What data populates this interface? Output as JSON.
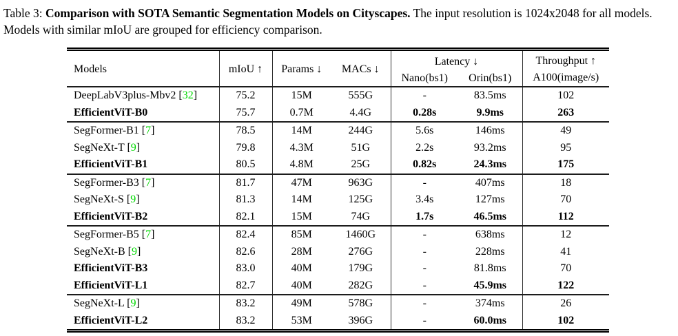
{
  "caption": {
    "prefix": "Table 3: ",
    "title_bold": "Comparison with SOTA Semantic Segmentation Models on Cityscapes.",
    "rest": " The input resolution is 1024x2048 for all models. Models with similar mIoU are grouped for efficiency comparison."
  },
  "table": {
    "citation_color": "#00d800",
    "header": {
      "models": "Models",
      "miou": "mIoU ↑",
      "params": "Params ↓",
      "macs": "MACs ↓",
      "latency": "Latency ↓",
      "latency_sub": [
        "Nano(bs1)",
        "Orin(bs1)"
      ],
      "throughput": "Throughput ↑",
      "throughput_sub": "A100(image/s)"
    },
    "columns": [
      "Models",
      "mIoU",
      "Params",
      "MACs",
      "Latency Nano(bs1)",
      "Latency Orin(bs1)",
      "Throughput A100(image/s)"
    ],
    "groups": [
      {
        "rows": [
          {
            "model": "DeepLabV3plus-Mbv2",
            "cite": "32",
            "name_bold": false,
            "cells": [
              "75.2",
              "15M",
              "555G",
              "-",
              "83.5ms",
              "102"
            ],
            "bold_cells": []
          },
          {
            "model": "EfficientViT-B0",
            "cite": "",
            "name_bold": true,
            "cells": [
              "75.7",
              "0.7M",
              "4.4G",
              "0.28s",
              "9.9ms",
              "263"
            ],
            "bold_cells": [
              3,
              4,
              5
            ]
          }
        ]
      },
      {
        "rows": [
          {
            "model": "SegFormer-B1",
            "cite": "7",
            "name_bold": false,
            "cells": [
              "78.5",
              "14M",
              "244G",
              "5.6s",
              "146ms",
              "49"
            ],
            "bold_cells": []
          },
          {
            "model": "SegNeXt-T",
            "cite": "9",
            "name_bold": false,
            "cells": [
              "79.8",
              "4.3M",
              "51G",
              "2.2s",
              "93.2ms",
              "95"
            ],
            "bold_cells": []
          },
          {
            "model": "EfficientViT-B1",
            "cite": "",
            "name_bold": true,
            "cells": [
              "80.5",
              "4.8M",
              "25G",
              "0.82s",
              "24.3ms",
              "175"
            ],
            "bold_cells": [
              3,
              4,
              5
            ]
          }
        ]
      },
      {
        "rows": [
          {
            "model": "SegFormer-B3",
            "cite": "7",
            "name_bold": false,
            "cells": [
              "81.7",
              "47M",
              "963G",
              "-",
              "407ms",
              "18"
            ],
            "bold_cells": []
          },
          {
            "model": "SegNeXt-S",
            "cite": "9",
            "name_bold": false,
            "cells": [
              "81.3",
              "14M",
              "125G",
              "3.4s",
              "127ms",
              "70"
            ],
            "bold_cells": []
          },
          {
            "model": "EfficientViT-B2",
            "cite": "",
            "name_bold": true,
            "cells": [
              "82.1",
              "15M",
              "74G",
              "1.7s",
              "46.5ms",
              "112"
            ],
            "bold_cells": [
              3,
              4,
              5
            ]
          }
        ]
      },
      {
        "rows": [
          {
            "model": "SegFormer-B5",
            "cite": "7",
            "name_bold": false,
            "cells": [
              "82.4",
              "85M",
              "1460G",
              "-",
              "638ms",
              "12"
            ],
            "bold_cells": []
          },
          {
            "model": "SegNeXt-B",
            "cite": "9",
            "name_bold": false,
            "cells": [
              "82.6",
              "28M",
              "276G",
              "-",
              "228ms",
              "41"
            ],
            "bold_cells": []
          },
          {
            "model": "EfficientViT-B3",
            "cite": "",
            "name_bold": true,
            "cells": [
              "83.0",
              "40M",
              "179G",
              "-",
              "81.8ms",
              "70"
            ],
            "bold_cells": []
          },
          {
            "model": "EfficientViT-L1",
            "cite": "",
            "name_bold": true,
            "cells": [
              "82.7",
              "40M",
              "282G",
              "-",
              "45.9ms",
              "122"
            ],
            "bold_cells": [
              4,
              5
            ]
          }
        ]
      },
      {
        "rows": [
          {
            "model": "SegNeXt-L",
            "cite": "9",
            "name_bold": false,
            "cells": [
              "83.2",
              "49M",
              "578G",
              "-",
              "374ms",
              "26"
            ],
            "bold_cells": []
          },
          {
            "model": "EfficientViT-L2",
            "cite": "",
            "name_bold": true,
            "cells": [
              "83.2",
              "53M",
              "396G",
              "-",
              "60.0ms",
              "102"
            ],
            "bold_cells": [
              4,
              5
            ]
          }
        ]
      }
    ]
  }
}
